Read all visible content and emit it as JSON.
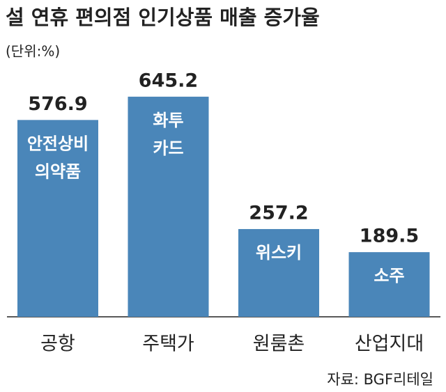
{
  "chart_data": {
    "type": "bar",
    "title": "설 연휴 편의점 인기상품 매출 증가율",
    "unit": "(단위:%)",
    "categories": [
      "공항",
      "주택가",
      "원룸촌",
      "산업지대"
    ],
    "values": [
      576.9,
      645.2,
      257.2,
      189.5
    ],
    "bar_labels": [
      [
        "안전상비",
        "의약품"
      ],
      [
        "화투",
        "카드"
      ],
      [
        "위스키"
      ],
      [
        "소주"
      ]
    ],
    "color": "#4a86b9",
    "ylim": [
      0,
      700
    ],
    "source": "자료: BGF리테일"
  }
}
